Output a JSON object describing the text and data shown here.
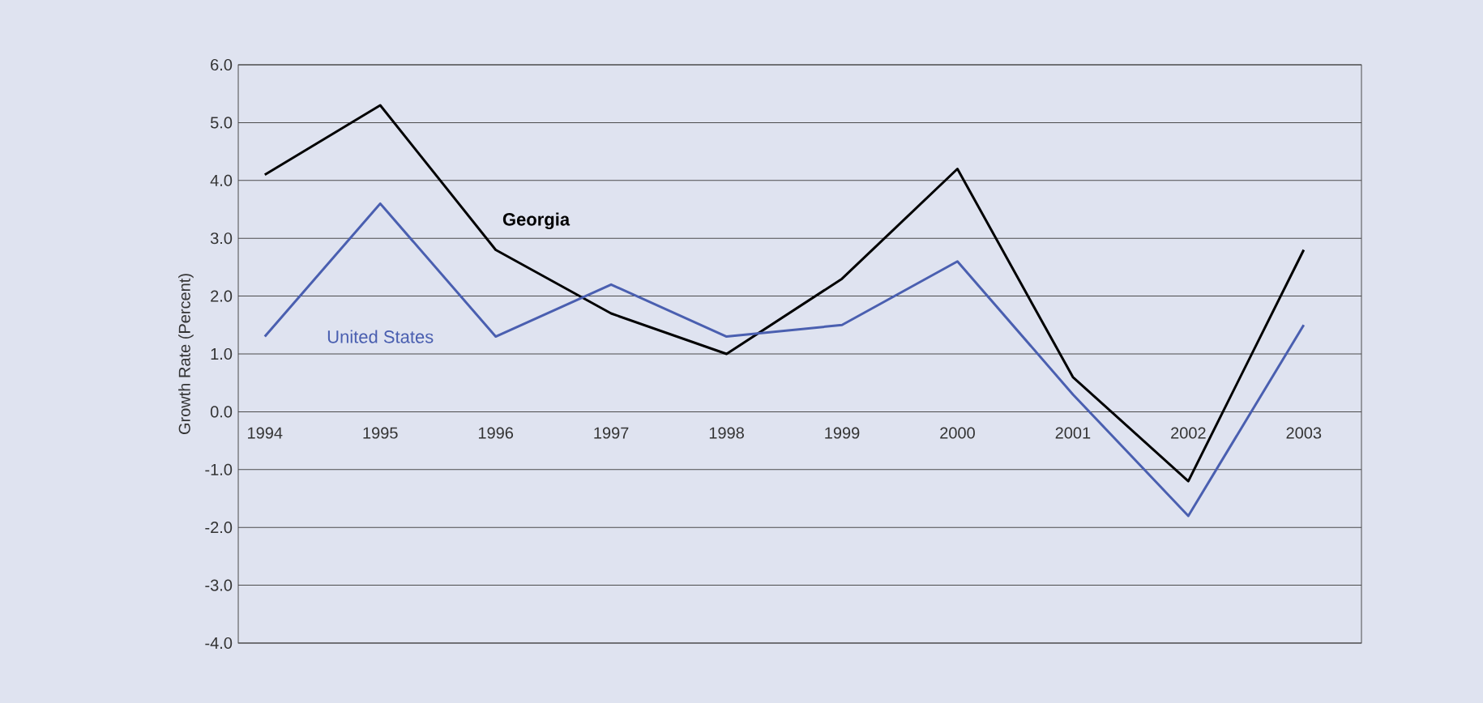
{
  "chart_data": {
    "type": "line",
    "ylabel": "Growth Rate (Percent)",
    "categories": [
      "1994",
      "1995",
      "1996",
      "1997",
      "1998",
      "1999",
      "2000",
      "2001",
      "2002",
      "2003"
    ],
    "series": [
      {
        "name": "Georgia",
        "color": "#000000",
        "values": [
          4.1,
          5.3,
          2.8,
          1.7,
          1.0,
          2.3,
          4.2,
          0.6,
          -1.2,
          2.8
        ]
      },
      {
        "name": "United States",
        "color": "#4a5fb0",
        "values": [
          1.3,
          3.6,
          1.3,
          2.2,
          1.3,
          1.5,
          2.6,
          0.3,
          -1.8,
          1.5
        ]
      }
    ],
    "ylim": [
      -4,
      6
    ],
    "yticks": [
      {
        "value": -4,
        "label": "-4.0"
      },
      {
        "value": -3,
        "label": "-3.0"
      },
      {
        "value": -2,
        "label": "-2.0"
      },
      {
        "value": -1,
        "label": "-1.0"
      },
      {
        "value": 0,
        "label": "0.0"
      },
      {
        "value": 1,
        "label": "1.0"
      },
      {
        "value": 2,
        "label": "2.0"
      },
      {
        "value": 3,
        "label": "3.0"
      },
      {
        "value": 4,
        "label": "4.0"
      },
      {
        "value": 5,
        "label": "5.0"
      },
      {
        "value": 6,
        "label": "6.0"
      }
    ],
    "grid": "y",
    "legend": false,
    "marker": "none",
    "line_style": "solid"
  }
}
